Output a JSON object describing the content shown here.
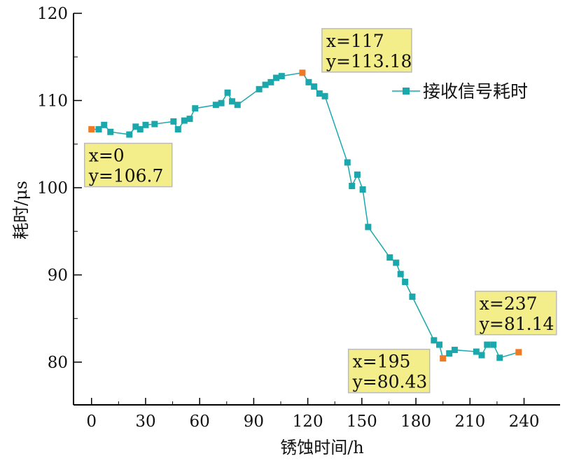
{
  "chart_data": {
    "type": "line",
    "xlabel": "锈蚀时间/h",
    "ylabel": "耗时/μs",
    "xlim": [
      -10,
      260
    ],
    "ylim": [
      75.1,
      120
    ],
    "xticks": [
      0,
      30,
      60,
      90,
      120,
      150,
      180,
      210,
      240
    ],
    "yticks": [
      80,
      90,
      100,
      110,
      120
    ],
    "legend": {
      "label": "接收信号耗时",
      "placement": "top-right"
    },
    "colors": {
      "line": "#1aa8ac",
      "marker": "#1aa8ac",
      "highlight": "#ee7a28",
      "annotation_bg": "#f3ee8a"
    },
    "series": [
      {
        "name": "接收信号耗时",
        "x": [
          0,
          4,
          7,
          10.5,
          21,
          24.5,
          27,
          30,
          35,
          45.5,
          48,
          51.5,
          54.5,
          57.5,
          69,
          72,
          75.5,
          78,
          81,
          93,
          96.5,
          99.5,
          102.5,
          105.5,
          117,
          120.5,
          123.5,
          126.5,
          129.5,
          142,
          144.5,
          147.5,
          150.5,
          153.5,
          165.5,
          169,
          171.5,
          174,
          178,
          190,
          193,
          195,
          198.5,
          201.5,
          213.5,
          216.5,
          219.5,
          223,
          226.5,
          237
        ],
        "y": [
          106.7,
          106.7,
          107.2,
          106.4,
          106.1,
          107.0,
          106.7,
          107.2,
          107.3,
          107.6,
          106.7,
          107.7,
          107.9,
          109.1,
          109.5,
          109.7,
          110.9,
          109.9,
          109.5,
          111.3,
          111.8,
          112.1,
          112.6,
          112.8,
          113.18,
          112.1,
          111.6,
          110.8,
          110.5,
          102.9,
          100.2,
          101.5,
          99.8,
          95.5,
          92.0,
          91.4,
          90.1,
          89.2,
          87.5,
          82.5,
          82.0,
          80.43,
          81.0,
          81.4,
          81.2,
          80.8,
          82.0,
          82.0,
          80.5,
          81.14
        ]
      }
    ],
    "annotations": [
      {
        "x": 0,
        "y": 106.7,
        "line1": "x=0",
        "line2": "y=106.7"
      },
      {
        "x": 117,
        "y": 113.18,
        "line1": "x=117",
        "line2": "y=113.18"
      },
      {
        "x": 195,
        "y": 80.43,
        "line1": "x=195",
        "line2": "y=80.43"
      },
      {
        "x": 237,
        "y": 81.14,
        "line1": "x=237",
        "line2": "y=81.14"
      }
    ]
  }
}
